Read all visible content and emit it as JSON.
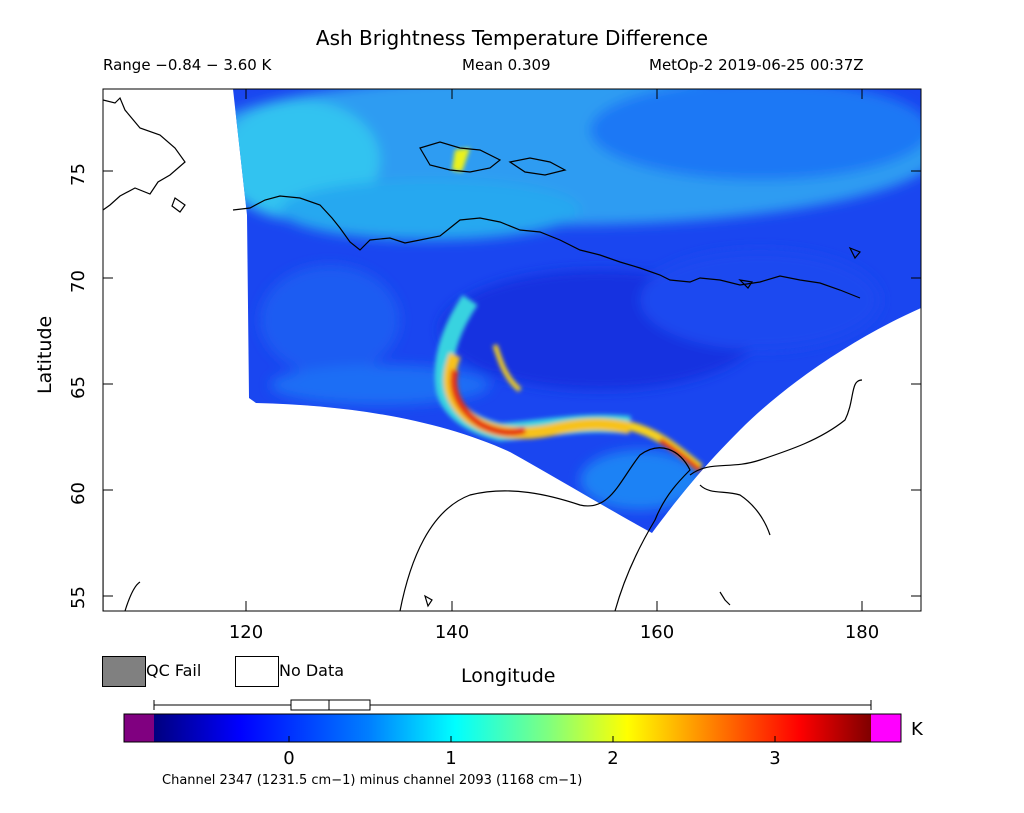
{
  "title": "Ash Brightness Temperature Difference",
  "subtitle": {
    "range": "Range −0.84 − 3.60 K",
    "mean": "Mean 0.309",
    "satellite": "MetOp-2 2019-06-25 00:37Z"
  },
  "axes": {
    "ylabel": "Latitude",
    "xlabel": "Longitude",
    "yticks": [
      "75",
      "70",
      "65",
      "60",
      "55"
    ],
    "xticks": [
      "120",
      "140",
      "160",
      "180"
    ],
    "lon_range": [
      106,
      186
    ],
    "lat_range": [
      54.3,
      78.8
    ]
  },
  "legend": {
    "qc_fail": "QC Fail",
    "no_data": "No Data",
    "qc_fail_color": "#808080",
    "no_data_color": "#ffffff"
  },
  "colorbar": {
    "unit": "K",
    "ticks": [
      "0",
      "1",
      "2",
      "3"
    ],
    "range": [
      -0.84,
      3.6
    ],
    "underflow_color": "#800080",
    "overflow_color": "#ff00ff",
    "colors": [
      "#00007f",
      "#0000ff",
      "#007fff",
      "#00ffff",
      "#7fff7f",
      "#ffff00",
      "#ff7f00",
      "#ff0000",
      "#7f0000"
    ]
  },
  "caption": "Channel 2347 (1231.5 cm−1) minus channel 2093 (1168 cm−1)"
}
